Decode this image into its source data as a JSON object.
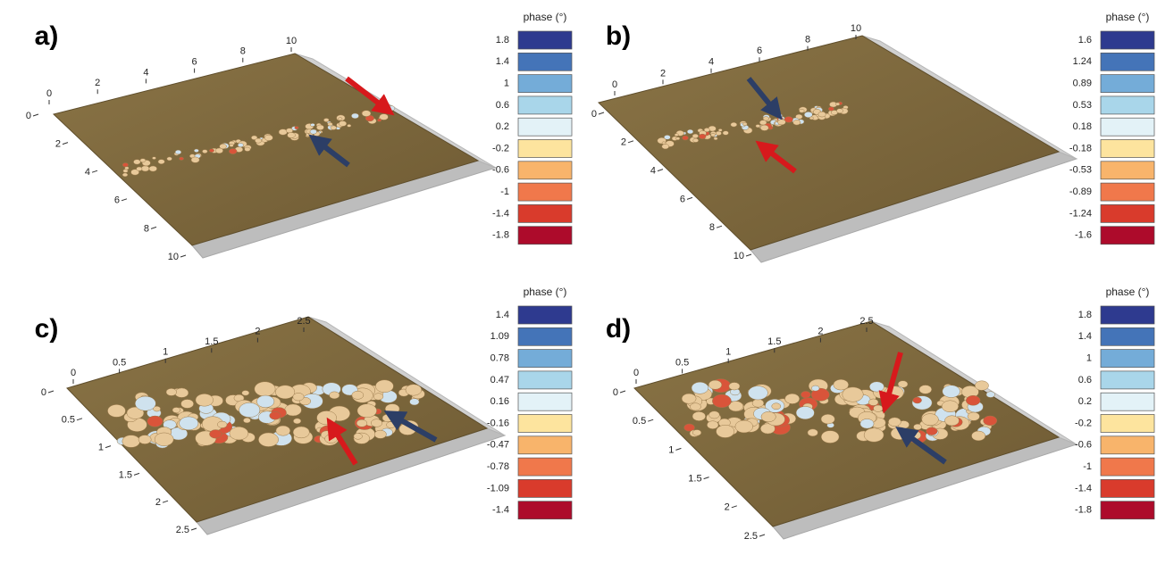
{
  "panels": [
    {
      "label": "a)",
      "legend": {
        "title": "phase (°)",
        "labels": [
          "1.8",
          "1.4",
          "1",
          "0.6",
          "0.2",
          "-0.2",
          "-0.6",
          "-1",
          "-1.4",
          "-1.8"
        ]
      },
      "x_ticks": [
        "0",
        "2",
        "4",
        "6",
        "8",
        "10"
      ],
      "y_ticks": [
        "0",
        "2",
        "4",
        "6",
        "8",
        "10"
      ]
    },
    {
      "label": "b)",
      "legend": {
        "title": "phase (°)",
        "labels": [
          "1.6",
          "1.24",
          "0.89",
          "0.53",
          "0.18",
          "-0.18",
          "-0.53",
          "-0.89",
          "-1.24",
          "-1.6"
        ]
      },
      "x_ticks": [
        "0",
        "2",
        "4",
        "6",
        "8",
        "10"
      ],
      "y_ticks": [
        "0",
        "2",
        "4",
        "6",
        "8",
        "10"
      ]
    },
    {
      "label": "c)",
      "legend": {
        "title": "phase (°)",
        "labels": [
          "1.4",
          "1.09",
          "0.78",
          "0.47",
          "0.16",
          "-0.16",
          "-0.47",
          "-0.78",
          "-1.09",
          "-1.4"
        ]
      },
      "x_ticks": [
        "0",
        "0.5",
        "1",
        "1.5",
        "2",
        "2.5"
      ],
      "y_ticks": [
        "0",
        "0.5",
        "1",
        "1.5",
        "2",
        "2.5"
      ]
    },
    {
      "label": "d)",
      "legend": {
        "title": "phase (°)",
        "labels": [
          "1.8",
          "1.4",
          "1",
          "0.6",
          "0.2",
          "-0.2",
          "-0.6",
          "-1",
          "-1.4",
          "-1.8"
        ]
      },
      "x_ticks": [
        "0",
        "0.5",
        "1",
        "1.5",
        "2",
        "2.5"
      ],
      "y_ticks": [
        "0",
        "0.5",
        "1",
        "1.5",
        "2",
        "2.5"
      ]
    }
  ]
}
